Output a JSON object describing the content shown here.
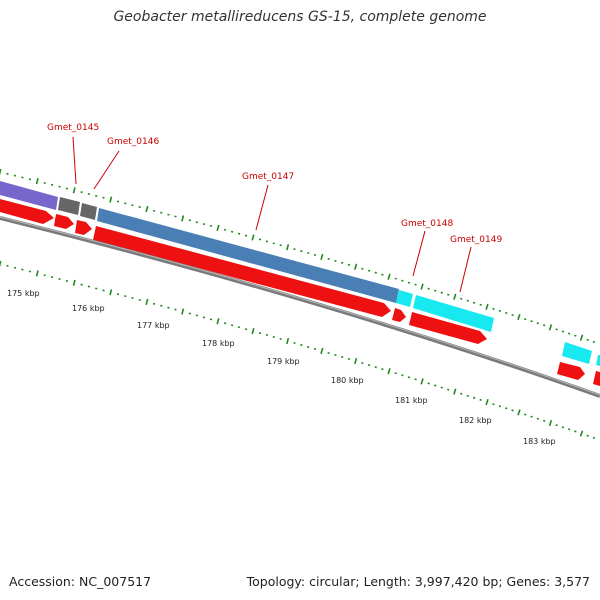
{
  "title": "Geobacter metallireducens GS-15, complete genome",
  "footer": {
    "accession": "Accession: NC_007517",
    "summary": "Topology: circular; Length: 3,997,420 bp; Genes: 3,577"
  },
  "colors": {
    "backbone": "#8c8c8c",
    "cds": "#ee1111",
    "gene_purple": "#7766cc",
    "gene_gray": "#666666",
    "gene_steelblue": "#4a7fb5",
    "gene_cyan": "#18e8f0",
    "tick_green": "#1f8a1f",
    "label_red": "#cc0000"
  },
  "kbp_labels": [
    "175 kbp",
    "176 kbp",
    "177 kbp",
    "178 kbp",
    "179 kbp",
    "180 kbp",
    "181 kbp",
    "182 kbp",
    "183 kbp"
  ],
  "genes": [
    {
      "name": "Gmet_0145",
      "color": "gene_gray"
    },
    {
      "name": "Gmet_0146",
      "color": "gene_gray"
    },
    {
      "name": "Gmet_0147",
      "color": "gene_steelblue"
    },
    {
      "name": "Gmet_0148",
      "color": "gene_cyan"
    },
    {
      "name": "Gmet_0149",
      "color": "gene_cyan"
    }
  ]
}
